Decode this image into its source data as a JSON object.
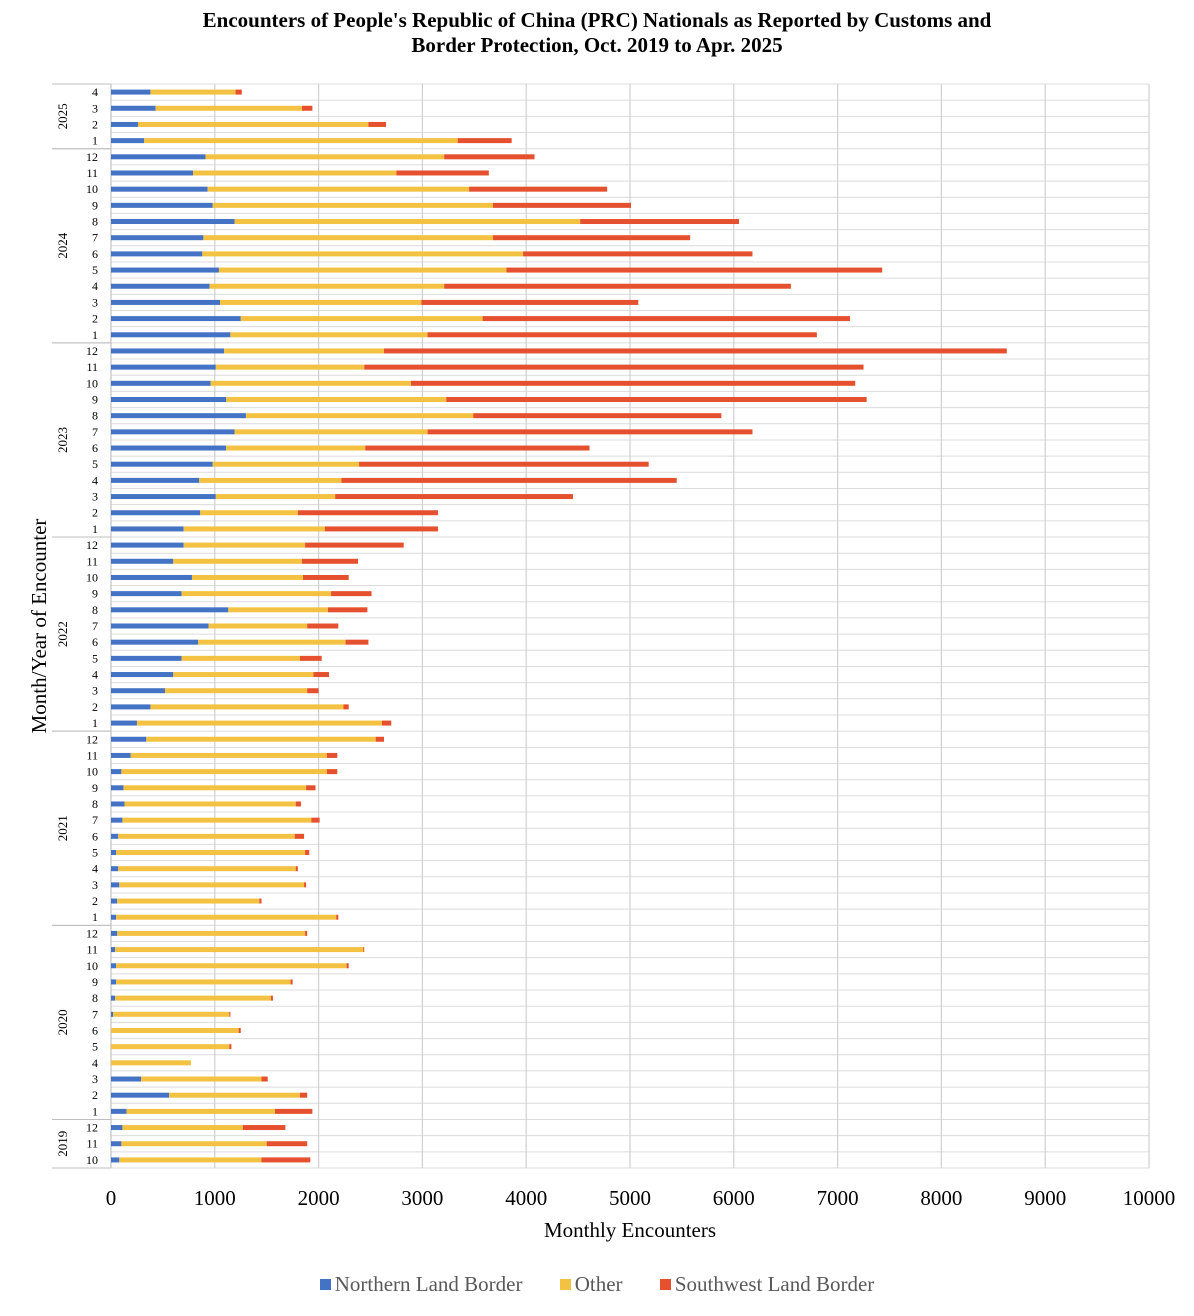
{
  "chart_data": {
    "type": "bar",
    "orientation": "horizontal",
    "stacked": true,
    "title_line1": "Encounters of People's Republic of China (PRC) Nationals as Reported by Customs and",
    "title_line2": "Border Protection, Oct. 2019 to Apr. 2025",
    "xlabel": "Monthly Encounters",
    "ylabel": "Month/Year of Encounter",
    "xlim": [
      0,
      10000
    ],
    "xticks": [
      0,
      1000,
      2000,
      3000,
      4000,
      5000,
      6000,
      7000,
      8000,
      9000,
      10000
    ],
    "grid": true,
    "legend_position": "bottom",
    "colors": [
      "#4472C4",
      "#F4C242",
      "#E5502E"
    ],
    "series_names": [
      "Northern Land Border",
      "Other",
      "Southwest Land Border"
    ],
    "categories": [
      {
        "year": "2019",
        "month": "10",
        "values": [
          80,
          1370,
          470
        ]
      },
      {
        "year": "2019",
        "month": "11",
        "values": [
          100,
          1400,
          390
        ]
      },
      {
        "year": "2019",
        "month": "12",
        "values": [
          110,
          1160,
          410
        ]
      },
      {
        "year": "2020",
        "month": "1",
        "values": [
          150,
          1430,
          360
        ]
      },
      {
        "year": "2020",
        "month": "2",
        "values": [
          560,
          1260,
          70
        ]
      },
      {
        "year": "2020",
        "month": "3",
        "values": [
          290,
          1160,
          60
        ]
      },
      {
        "year": "2020",
        "month": "4",
        "values": [
          0,
          770,
          0
        ]
      },
      {
        "year": "2020",
        "month": "5",
        "values": [
          0,
          1140,
          20
        ]
      },
      {
        "year": "2020",
        "month": "6",
        "values": [
          0,
          1230,
          20
        ]
      },
      {
        "year": "2020",
        "month": "7",
        "values": [
          20,
          1120,
          10
        ]
      },
      {
        "year": "2020",
        "month": "8",
        "values": [
          40,
          1500,
          20
        ]
      },
      {
        "year": "2020",
        "month": "9",
        "values": [
          50,
          1680,
          20
        ]
      },
      {
        "year": "2020",
        "month": "10",
        "values": [
          50,
          2220,
          20
        ]
      },
      {
        "year": "2020",
        "month": "11",
        "values": [
          40,
          2390,
          10
        ]
      },
      {
        "year": "2020",
        "month": "12",
        "values": [
          60,
          1810,
          20
        ]
      },
      {
        "year": "2021",
        "month": "1",
        "values": [
          50,
          2120,
          20
        ]
      },
      {
        "year": "2021",
        "month": "2",
        "values": [
          60,
          1370,
          20
        ]
      },
      {
        "year": "2021",
        "month": "3",
        "values": [
          80,
          1780,
          20
        ]
      },
      {
        "year": "2021",
        "month": "4",
        "values": [
          70,
          1710,
          20
        ]
      },
      {
        "year": "2021",
        "month": "5",
        "values": [
          50,
          1820,
          40
        ]
      },
      {
        "year": "2021",
        "month": "6",
        "values": [
          70,
          1700,
          90
        ]
      },
      {
        "year": "2021",
        "month": "7",
        "values": [
          110,
          1820,
          80
        ]
      },
      {
        "year": "2021",
        "month": "8",
        "values": [
          130,
          1650,
          50
        ]
      },
      {
        "year": "2021",
        "month": "9",
        "values": [
          120,
          1760,
          90
        ]
      },
      {
        "year": "2021",
        "month": "10",
        "values": [
          100,
          1980,
          100
        ]
      },
      {
        "year": "2021",
        "month": "11",
        "values": [
          190,
          1890,
          100
        ]
      },
      {
        "year": "2021",
        "month": "12",
        "values": [
          340,
          2210,
          80
        ]
      },
      {
        "year": "2022",
        "month": "1",
        "values": [
          250,
          2360,
          90
        ]
      },
      {
        "year": "2022",
        "month": "2",
        "values": [
          380,
          1860,
          50
        ]
      },
      {
        "year": "2022",
        "month": "3",
        "values": [
          520,
          1370,
          110
        ]
      },
      {
        "year": "2022",
        "month": "4",
        "values": [
          600,
          1350,
          150
        ]
      },
      {
        "year": "2022",
        "month": "5",
        "values": [
          680,
          1140,
          210
        ]
      },
      {
        "year": "2022",
        "month": "6",
        "values": [
          840,
          1420,
          220
        ]
      },
      {
        "year": "2022",
        "month": "7",
        "values": [
          940,
          950,
          300
        ]
      },
      {
        "year": "2022",
        "month": "8",
        "values": [
          1130,
          960,
          380
        ]
      },
      {
        "year": "2022",
        "month": "9",
        "values": [
          680,
          1440,
          390
        ]
      },
      {
        "year": "2022",
        "month": "10",
        "values": [
          780,
          1070,
          440
        ]
      },
      {
        "year": "2022",
        "month": "11",
        "values": [
          600,
          1240,
          540
        ]
      },
      {
        "year": "2022",
        "month": "12",
        "values": [
          700,
          1170,
          950
        ]
      },
      {
        "year": "2023",
        "month": "1",
        "values": [
          700,
          1360,
          1090
        ]
      },
      {
        "year": "2023",
        "month": "2",
        "values": [
          860,
          940,
          1350
        ]
      },
      {
        "year": "2023",
        "month": "3",
        "values": [
          1010,
          1150,
          2290
        ]
      },
      {
        "year": "2023",
        "month": "4",
        "values": [
          850,
          1370,
          3230
        ]
      },
      {
        "year": "2023",
        "month": "5",
        "values": [
          980,
          1410,
          2790
        ]
      },
      {
        "year": "2023",
        "month": "6",
        "values": [
          1110,
          1340,
          2160
        ]
      },
      {
        "year": "2023",
        "month": "7",
        "values": [
          1190,
          1860,
          3130
        ]
      },
      {
        "year": "2023",
        "month": "8",
        "values": [
          1300,
          2190,
          2390
        ]
      },
      {
        "year": "2023",
        "month": "9",
        "values": [
          1110,
          2120,
          4050
        ]
      },
      {
        "year": "2023",
        "month": "10",
        "values": [
          960,
          1930,
          4280
        ]
      },
      {
        "year": "2023",
        "month": "11",
        "values": [
          1010,
          1430,
          4810
        ]
      },
      {
        "year": "2023",
        "month": "12",
        "values": [
          1090,
          1540,
          6000
        ]
      },
      {
        "year": "2024",
        "month": "1",
        "values": [
          1150,
          1900,
          3750
        ]
      },
      {
        "year": "2024",
        "month": "2",
        "values": [
          1250,
          2330,
          3540
        ]
      },
      {
        "year": "2024",
        "month": "3",
        "values": [
          1050,
          1940,
          2090
        ]
      },
      {
        "year": "2024",
        "month": "4",
        "values": [
          950,
          2260,
          3340
        ]
      },
      {
        "year": "2024",
        "month": "5",
        "values": [
          1040,
          2770,
          3620
        ]
      },
      {
        "year": "2024",
        "month": "6",
        "values": [
          880,
          3090,
          2210
        ]
      },
      {
        "year": "2024",
        "month": "7",
        "values": [
          890,
          2790,
          1900
        ]
      },
      {
        "year": "2024",
        "month": "8",
        "values": [
          1190,
          3330,
          1530
        ]
      },
      {
        "year": "2024",
        "month": "9",
        "values": [
          980,
          2700,
          1330
        ]
      },
      {
        "year": "2024",
        "month": "10",
        "values": [
          930,
          2520,
          1330
        ]
      },
      {
        "year": "2024",
        "month": "11",
        "values": [
          790,
          1960,
          890
        ]
      },
      {
        "year": "2024",
        "month": "12",
        "values": [
          910,
          2300,
          870
        ]
      },
      {
        "year": "2025",
        "month": "1",
        "values": [
          320,
          3020,
          520
        ]
      },
      {
        "year": "2025",
        "month": "2",
        "values": [
          260,
          2220,
          170
        ]
      },
      {
        "year": "2025",
        "month": "3",
        "values": [
          430,
          1410,
          100
        ]
      },
      {
        "year": "2025",
        "month": "4",
        "values": [
          380,
          820,
          60
        ]
      }
    ]
  }
}
